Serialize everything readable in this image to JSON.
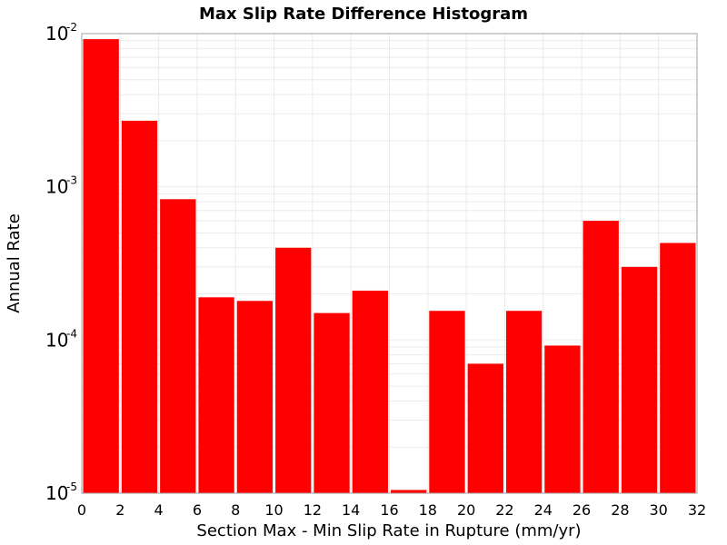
{
  "chart_data": {
    "type": "bar",
    "title": "Max Slip Rate Difference Histogram",
    "xlabel": "Section Max - Min Slip Rate in Rupture (mm/yr)",
    "ylabel": "Annual Rate",
    "x_bin_width": 2,
    "x": [
      1,
      3,
      5,
      7,
      9,
      11,
      13,
      15,
      17,
      19,
      21,
      23,
      25,
      27,
      29,
      31
    ],
    "values": [
      0.0092,
      0.0027,
      0.00083,
      0.00019,
      0.00018,
      0.0004,
      0.00015,
      0.00021,
      1.05e-05,
      0.000155,
      7e-05,
      0.000155,
      9.2e-05,
      0.0006,
      0.0003,
      0.00043
    ],
    "xlim": [
      0,
      32
    ],
    "ylim": [
      1e-05,
      0.01
    ],
    "yscale": "log",
    "xticks": [
      0,
      2,
      4,
      6,
      8,
      10,
      12,
      14,
      16,
      18,
      20,
      22,
      24,
      26,
      28,
      30,
      32
    ],
    "yticks": [
      {
        "base": "10",
        "exp": "-5",
        "value": 1e-05
      },
      {
        "base": "10",
        "exp": "-4",
        "value": 0.0001
      },
      {
        "base": "10",
        "exp": "-3",
        "value": 0.001
      },
      {
        "base": "10",
        "exp": "-2",
        "value": 0.01
      }
    ],
    "grid": true,
    "colors": {
      "bar": "#ff0000",
      "grid": "#ebebeb",
      "frame": "#a0a0a0"
    }
  }
}
